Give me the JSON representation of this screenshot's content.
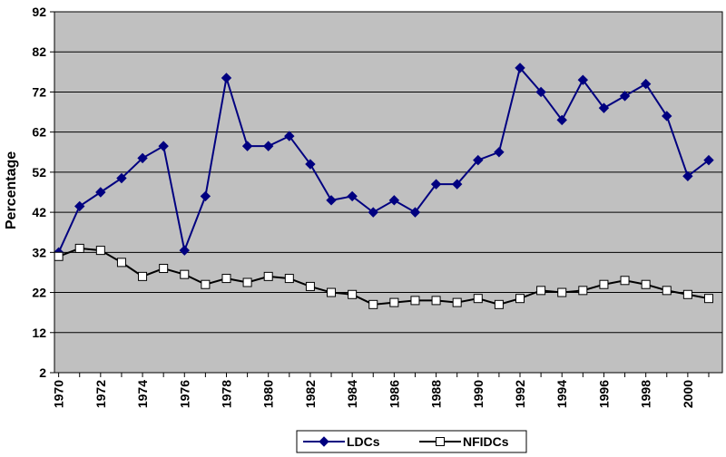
{
  "chart_data": {
    "type": "line",
    "ylabel": "Percentage",
    "xlabel": "",
    "title": "",
    "ylim": [
      2,
      92
    ],
    "yticks": [
      2,
      12,
      22,
      32,
      42,
      52,
      62,
      72,
      82,
      92
    ],
    "xlim": [
      1970,
      2001
    ],
    "xticks": [
      "1970",
      "1972",
      "1974",
      "1976",
      "1978",
      "1980",
      "1982",
      "1984",
      "1986",
      "1988",
      "1990",
      "1992",
      "1994",
      "1996",
      "1998",
      "2000"
    ],
    "grid": "horizontal",
    "legend_position": "bottom",
    "colors": {
      "plot_background": "#c0c0c0",
      "ldcs": "#000080",
      "nfidcs_line": "#000000",
      "nfidcs_marker_fill": "#ffffff"
    },
    "x": [
      1970,
      1971,
      1972,
      1973,
      1974,
      1975,
      1976,
      1977,
      1978,
      1979,
      1980,
      1981,
      1982,
      1983,
      1984,
      1985,
      1986,
      1987,
      1988,
      1989,
      1990,
      1991,
      1992,
      1993,
      1994,
      1995,
      1996,
      1997,
      1998,
      1999,
      2000,
      2001
    ],
    "series": [
      {
        "name": "LDCs",
        "marker": "diamond",
        "values": [
          32,
          43.5,
          47,
          50.5,
          55.5,
          58.5,
          32.5,
          46,
          75.5,
          58.5,
          58.5,
          61,
          54,
          45,
          46,
          42,
          45,
          42,
          49,
          49,
          55,
          57,
          78,
          72,
          65,
          75,
          68,
          71,
          74,
          66,
          51,
          55
        ]
      },
      {
        "name": "NFIDCs",
        "marker": "square",
        "values": [
          31,
          33,
          32.5,
          29.5,
          26,
          28,
          26.5,
          24,
          25.5,
          24.5,
          26,
          25.5,
          23.5,
          22,
          21.5,
          19,
          19.5,
          20,
          20,
          19.5,
          20.5,
          19,
          20.5,
          22.5,
          22,
          22.5,
          24,
          25,
          24,
          22.5,
          21.5,
          20.5
        ]
      }
    ]
  }
}
